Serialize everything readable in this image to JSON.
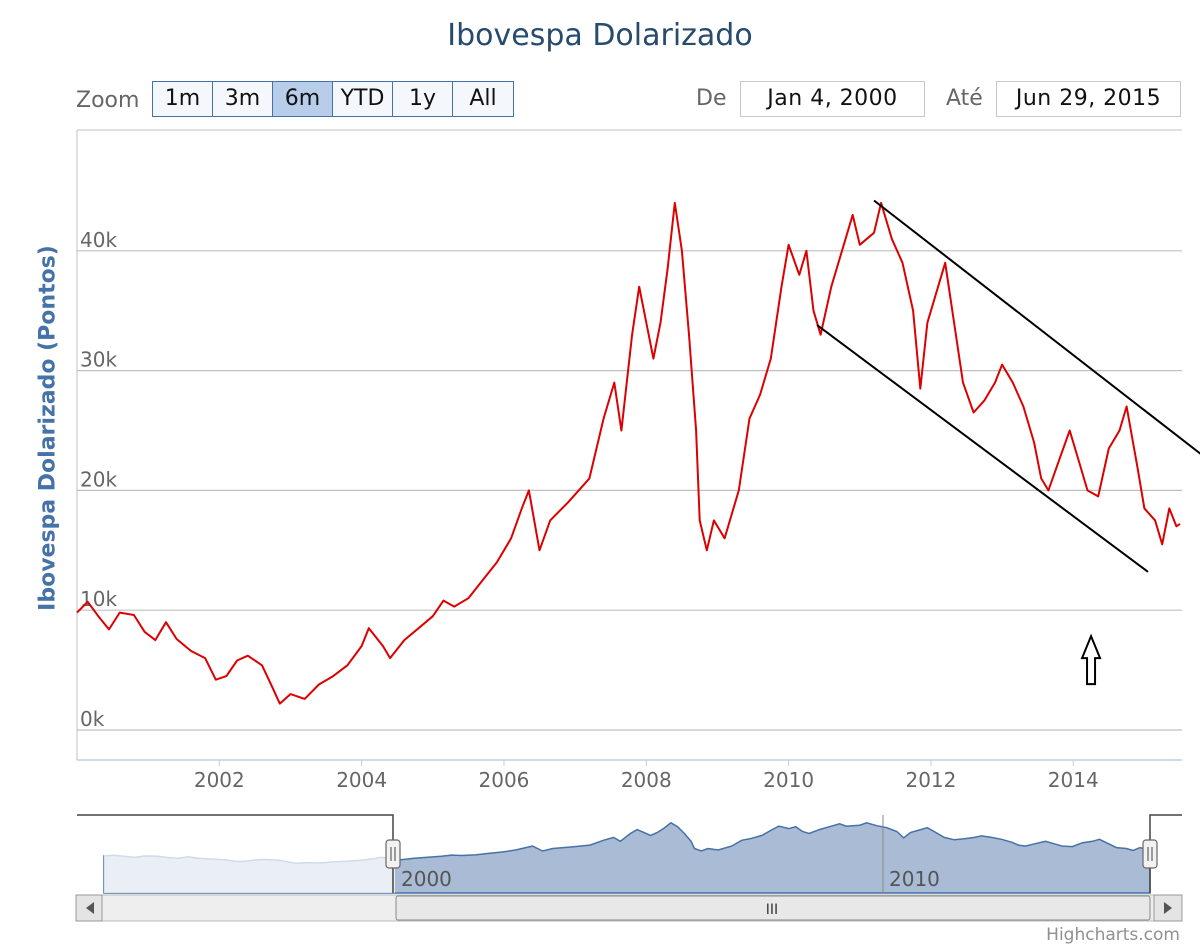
{
  "title": "Ibovespa Dolarizado",
  "range_selector": {
    "zoom_label": "Zoom",
    "buttons": [
      "1m",
      "3m",
      "6m",
      "YTD",
      "1y",
      "All"
    ],
    "active": "6m",
    "from_label": "De",
    "from_value": "Jan 4, 2000",
    "to_label": "Até",
    "to_value": "Jun 29, 2015"
  },
  "navigator": {
    "labels": [
      "2000",
      "2010"
    ],
    "scrollbar_grip": "III"
  },
  "credit": "Highcharts.com",
  "colors": {
    "series": "#dd0000",
    "title": "#274b6d",
    "axis_title": "#4572a7",
    "navigator": "#4572a7",
    "button_active": "#b7cde9"
  },
  "chart_data": {
    "type": "line",
    "title": "Ibovespa Dolarizado",
    "xlabel": "",
    "ylabel": "Ibovespa Dolarizado (Pontos)",
    "xlim": [
      2000.0,
      2015.5
    ],
    "ylim": [
      0,
      50000
    ],
    "y_ticks": [
      0,
      10000,
      20000,
      30000,
      40000
    ],
    "y_tick_labels": [
      "0k",
      "10k",
      "20k",
      "30k",
      "40k"
    ],
    "x_ticks": [
      2002,
      2004,
      2006,
      2008,
      2010,
      2012,
      2014
    ],
    "x_tick_labels": [
      "2002",
      "2004",
      "2006",
      "2008",
      "2010",
      "2012",
      "2014"
    ],
    "grid": true,
    "legend": "none",
    "series": [
      {
        "color": "#dd0000",
        "points": [
          [
            2000.0,
            9800
          ],
          [
            2000.15,
            10700
          ],
          [
            2000.3,
            9500
          ],
          [
            2000.45,
            8400
          ],
          [
            2000.6,
            9800
          ],
          [
            2000.8,
            9600
          ],
          [
            2000.95,
            8200
          ],
          [
            2001.1,
            7500
          ],
          [
            2001.25,
            9000
          ],
          [
            2001.4,
            7600
          ],
          [
            2001.6,
            6600
          ],
          [
            2001.8,
            6000
          ],
          [
            2001.95,
            4200
          ],
          [
            2002.1,
            4500
          ],
          [
            2002.25,
            5800
          ],
          [
            2002.4,
            6200
          ],
          [
            2002.6,
            5400
          ],
          [
            2002.75,
            3500
          ],
          [
            2002.85,
            2200
          ],
          [
            2003.0,
            3000
          ],
          [
            2003.2,
            2600
          ],
          [
            2003.4,
            3800
          ],
          [
            2003.6,
            4500
          ],
          [
            2003.8,
            5400
          ],
          [
            2004.0,
            7000
          ],
          [
            2004.1,
            8500
          ],
          [
            2004.3,
            7000
          ],
          [
            2004.4,
            6000
          ],
          [
            2004.6,
            7500
          ],
          [
            2004.8,
            8500
          ],
          [
            2005.0,
            9500
          ],
          [
            2005.15,
            10800
          ],
          [
            2005.3,
            10300
          ],
          [
            2005.5,
            11000
          ],
          [
            2005.7,
            12500
          ],
          [
            2005.9,
            14000
          ],
          [
            2006.1,
            16000
          ],
          [
            2006.25,
            18500
          ],
          [
            2006.35,
            20000
          ],
          [
            2006.5,
            15000
          ],
          [
            2006.65,
            17500
          ],
          [
            2006.9,
            19000
          ],
          [
            2007.2,
            21000
          ],
          [
            2007.4,
            26000
          ],
          [
            2007.55,
            29000
          ],
          [
            2007.65,
            25000
          ],
          [
            2007.8,
            33000
          ],
          [
            2007.9,
            37000
          ],
          [
            2008.0,
            34000
          ],
          [
            2008.1,
            31000
          ],
          [
            2008.2,
            34000
          ],
          [
            2008.3,
            38500
          ],
          [
            2008.4,
            44000
          ],
          [
            2008.5,
            40000
          ],
          [
            2008.6,
            33000
          ],
          [
            2008.7,
            25000
          ],
          [
            2008.75,
            17500
          ],
          [
            2008.85,
            15000
          ],
          [
            2008.95,
            17500
          ],
          [
            2009.1,
            16000
          ],
          [
            2009.3,
            20000
          ],
          [
            2009.45,
            26000
          ],
          [
            2009.6,
            28000
          ],
          [
            2009.75,
            31000
          ],
          [
            2009.9,
            37000
          ],
          [
            2010.0,
            40500
          ],
          [
            2010.15,
            38000
          ],
          [
            2010.25,
            40000
          ],
          [
            2010.35,
            35000
          ],
          [
            2010.45,
            33000
          ],
          [
            2010.6,
            37000
          ],
          [
            2010.75,
            40000
          ],
          [
            2010.9,
            43000
          ],
          [
            2011.0,
            40500
          ],
          [
            2011.2,
            41500
          ],
          [
            2011.3,
            44000
          ],
          [
            2011.45,
            41000
          ],
          [
            2011.6,
            39000
          ],
          [
            2011.75,
            35000
          ],
          [
            2011.85,
            28500
          ],
          [
            2011.95,
            34000
          ],
          [
            2012.1,
            37000
          ],
          [
            2012.2,
            39000
          ],
          [
            2012.3,
            35000
          ],
          [
            2012.45,
            29000
          ],
          [
            2012.6,
            26500
          ],
          [
            2012.75,
            27500
          ],
          [
            2012.9,
            29000
          ],
          [
            2013.0,
            30500
          ],
          [
            2013.15,
            29000
          ],
          [
            2013.3,
            27000
          ],
          [
            2013.45,
            24000
          ],
          [
            2013.55,
            21000
          ],
          [
            2013.65,
            20000
          ],
          [
            2013.8,
            22500
          ],
          [
            2013.95,
            25000
          ],
          [
            2014.1,
            22000
          ],
          [
            2014.2,
            20000
          ],
          [
            2014.35,
            19500
          ],
          [
            2014.5,
            23500
          ],
          [
            2014.65,
            25000
          ],
          [
            2014.75,
            27000
          ],
          [
            2014.9,
            22000
          ],
          [
            2015.0,
            18500
          ],
          [
            2015.15,
            17500
          ],
          [
            2015.25,
            15500
          ],
          [
            2015.35,
            18500
          ],
          [
            2015.45,
            17000
          ],
          [
            2015.5,
            17200
          ]
        ]
      }
    ],
    "annotations": [
      {
        "type": "line",
        "from": [
          2011.2,
          44200
        ],
        "to": [
          2015.8,
          23000
        ]
      },
      {
        "type": "line",
        "from": [
          2010.4,
          33800
        ],
        "to": [
          2015.05,
          13200
        ]
      },
      {
        "type": "arrow-up",
        "at": [
          2014.25,
          8000
        ]
      }
    ]
  }
}
